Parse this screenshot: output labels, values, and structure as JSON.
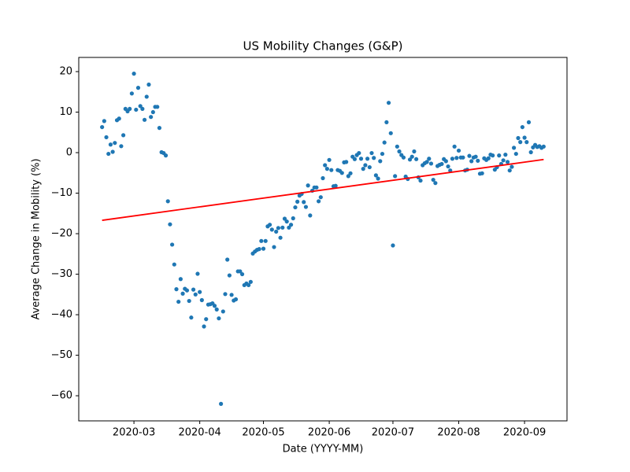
{
  "chart_data": {
    "type": "scatter",
    "title": "US Mobility Changes (G&P)",
    "x_label": "Date (YYYY-MM)",
    "y_label": "Average Change in Mobility (%)",
    "color": "#1f77b4",
    "x": [
      "2020-02-15",
      "2020-02-16",
      "2020-02-17",
      "2020-02-18",
      "2020-02-19",
      "2020-02-20",
      "2020-02-21",
      "2020-02-22",
      "2020-02-23",
      "2020-02-24",
      "2020-02-25",
      "2020-02-26",
      "2020-02-27",
      "2020-02-28",
      "2020-02-29",
      "2020-03-01",
      "2020-03-02",
      "2020-03-03",
      "2020-03-04",
      "2020-03-05",
      "2020-03-06",
      "2020-03-07",
      "2020-03-08",
      "2020-03-09",
      "2020-03-10",
      "2020-03-11",
      "2020-03-12",
      "2020-03-13",
      "2020-03-14",
      "2020-03-15",
      "2020-03-16",
      "2020-03-17",
      "2020-03-18",
      "2020-03-19",
      "2020-03-20",
      "2020-03-21",
      "2020-03-22",
      "2020-03-23",
      "2020-03-24",
      "2020-03-25",
      "2020-03-26",
      "2020-03-27",
      "2020-03-28",
      "2020-03-29",
      "2020-03-30",
      "2020-03-31",
      "2020-04-01",
      "2020-04-02",
      "2020-04-03",
      "2020-04-04",
      "2020-04-05",
      "2020-04-06",
      "2020-04-07",
      "2020-04-08",
      "2020-04-09",
      "2020-04-10",
      "2020-04-11",
      "2020-04-12",
      "2020-04-13",
      "2020-04-14",
      "2020-04-15",
      "2020-04-16",
      "2020-04-17",
      "2020-04-18",
      "2020-04-19",
      "2020-04-20",
      "2020-04-21",
      "2020-04-22",
      "2020-04-23",
      "2020-04-24",
      "2020-04-25",
      "2020-04-26",
      "2020-04-27",
      "2020-04-28",
      "2020-04-29",
      "2020-04-30",
      "2020-05-01",
      "2020-05-02",
      "2020-05-03",
      "2020-05-04",
      "2020-05-05",
      "2020-05-06",
      "2020-05-07",
      "2020-05-08",
      "2020-05-09",
      "2020-05-10",
      "2020-05-11",
      "2020-05-12",
      "2020-05-13",
      "2020-05-14",
      "2020-05-15",
      "2020-05-16",
      "2020-05-17",
      "2020-05-18",
      "2020-05-19",
      "2020-05-20",
      "2020-05-21",
      "2020-05-22",
      "2020-05-23",
      "2020-05-24",
      "2020-05-25",
      "2020-05-26",
      "2020-05-27",
      "2020-05-28",
      "2020-05-29",
      "2020-05-30",
      "2020-05-31",
      "2020-06-01",
      "2020-06-02",
      "2020-06-03",
      "2020-06-04",
      "2020-06-05",
      "2020-06-06",
      "2020-06-07",
      "2020-06-08",
      "2020-06-09",
      "2020-06-10",
      "2020-06-11",
      "2020-06-12",
      "2020-06-13",
      "2020-06-14",
      "2020-06-15",
      "2020-06-16",
      "2020-06-17",
      "2020-06-18",
      "2020-06-19",
      "2020-06-20",
      "2020-06-21",
      "2020-06-22",
      "2020-06-23",
      "2020-06-24",
      "2020-06-25",
      "2020-06-26",
      "2020-06-27",
      "2020-06-28",
      "2020-06-29",
      "2020-06-30",
      "2020-07-01",
      "2020-07-02",
      "2020-07-03",
      "2020-07-04",
      "2020-07-05",
      "2020-07-06",
      "2020-07-07",
      "2020-07-08",
      "2020-07-09",
      "2020-07-10",
      "2020-07-11",
      "2020-07-12",
      "2020-07-13",
      "2020-07-14",
      "2020-07-15",
      "2020-07-16",
      "2020-07-17",
      "2020-07-18",
      "2020-07-19",
      "2020-07-20",
      "2020-07-21",
      "2020-07-22",
      "2020-07-23",
      "2020-07-24",
      "2020-07-25",
      "2020-07-26",
      "2020-07-27",
      "2020-07-28",
      "2020-07-29",
      "2020-07-30",
      "2020-07-31",
      "2020-08-01",
      "2020-08-02",
      "2020-08-03",
      "2020-08-04",
      "2020-08-05",
      "2020-08-06",
      "2020-08-07",
      "2020-08-08",
      "2020-08-09",
      "2020-08-10",
      "2020-08-11",
      "2020-08-12",
      "2020-08-13",
      "2020-08-14",
      "2020-08-15",
      "2020-08-16",
      "2020-08-17",
      "2020-08-18",
      "2020-08-19",
      "2020-08-20",
      "2020-08-21",
      "2020-08-22",
      "2020-08-23",
      "2020-08-24",
      "2020-08-25",
      "2020-08-26",
      "2020-08-27",
      "2020-08-28",
      "2020-08-29",
      "2020-08-30",
      "2020-08-31",
      "2020-09-01",
      "2020-09-02",
      "2020-09-03",
      "2020-09-04",
      "2020-09-05",
      "2020-09-06",
      "2020-09-07",
      "2020-09-08",
      "2020-09-09",
      "2020-09-10"
    ],
    "values": [
      6.3,
      7.8,
      3.8,
      -0.3,
      2.0,
      0.2,
      2.4,
      8.0,
      8.4,
      1.6,
      4.3,
      10.8,
      10.2,
      10.8,
      14.6,
      19.5,
      10.6,
      16.0,
      11.5,
      10.8,
      8.1,
      13.8,
      16.8,
      8.8,
      10.0,
      11.3,
      11.3,
      6.1,
      0.1,
      -0.1,
      -0.7,
      -12.0,
      -17.7,
      -22.7,
      -27.6,
      -33.7,
      -36.8,
      -31.2,
      -34.8,
      -33.6,
      -34.0,
      -36.6,
      -40.7,
      -33.8,
      -35.0,
      -29.9,
      -34.4,
      -36.4,
      -42.9,
      -41.1,
      -37.5,
      -37.4,
      -37.2,
      -37.8,
      -38.7,
      -40.9,
      -62.0,
      -39.2,
      -34.9,
      -26.4,
      -30.3,
      -35.1,
      -36.5,
      -36.2,
      -29.3,
      -29.3,
      -30.0,
      -32.7,
      -32.3,
      -32.7,
      -31.9,
      -24.9,
      -24.4,
      -24.0,
      -23.8,
      -21.8,
      -23.7,
      -21.8,
      -18.2,
      -17.8,
      -19.0,
      -23.3,
      -19.5,
      -18.6,
      -21.0,
      -18.5,
      -16.3,
      -17.0,
      -18.5,
      -17.8,
      -16.2,
      -13.5,
      -12.1,
      -10.6,
      -10.2,
      -12.2,
      -13.4,
      -8.1,
      -15.5,
      -9.4,
      -8.6,
      -8.6,
      -12.0,
      -11.0,
      -6.3,
      -3.1,
      -4.0,
      -1.8,
      -4.3,
      -8.3,
      -8.2,
      -4.3,
      -4.5,
      -5.0,
      -2.4,
      -2.3,
      -5.8,
      -5.1,
      -1.0,
      -1.6,
      -0.6,
      -0.1,
      -1.5,
      -4.0,
      -3.1,
      -1.5,
      -3.6,
      -0.1,
      -1.3,
      -5.6,
      -6.4,
      -2.1,
      -0.3,
      2.5,
      7.5,
      12.3,
      4.8,
      -22.9,
      -5.8,
      1.5,
      0.3,
      -0.6,
      -1.2,
      -5.9,
      -6.5,
      -1.7,
      -1.0,
      0.3,
      -1.6,
      -6.1,
      -6.9,
      -3.1,
      -2.6,
      -2.3,
      -1.5,
      -2.7,
      -6.7,
      -7.5,
      -3.3,
      -3.0,
      -2.8,
      -1.6,
      -2.1,
      -3.4,
      -4.4,
      -1.5,
      1.5,
      -1.3,
      0.5,
      -1.2,
      -1.2,
      -4.4,
      -4.2,
      -0.8,
      -2.1,
      -1.2,
      -1.0,
      -2.0,
      -5.2,
      -5.1,
      -1.4,
      -1.8,
      -1.4,
      -0.5,
      -0.7,
      -4.2,
      -3.6,
      -0.7,
      -2.8,
      -1.9,
      -0.5,
      -2.3,
      -4.4,
      -3.5,
      1.2,
      -0.3,
      3.6,
      2.6,
      6.3,
      3.7,
      2.6,
      7.5,
      0.1,
      1.3,
      1.9,
      1.4,
      1.6,
      1.2,
      1.5
    ],
    "trend": {
      "x": [
        "2020-02-15",
        "2020-09-10"
      ],
      "values": [
        -16.7,
        -1.7
      ],
      "color": "#ff0000"
    },
    "xlim": [
      "2020-02-04",
      "2020-09-21"
    ],
    "xticks": [
      {
        "value": "2020-03-01",
        "label": "2020-03"
      },
      {
        "value": "2020-04-01",
        "label": "2020-04"
      },
      {
        "value": "2020-05-01",
        "label": "2020-05"
      },
      {
        "value": "2020-06-01",
        "label": "2020-06"
      },
      {
        "value": "2020-07-01",
        "label": "2020-07"
      },
      {
        "value": "2020-08-01",
        "label": "2020-08"
      },
      {
        "value": "2020-09-01",
        "label": "2020-09"
      }
    ],
    "ylim": [
      -66.2,
      23.5
    ],
    "yticks": [
      {
        "value": -60,
        "label": "−60"
      },
      {
        "value": -50,
        "label": "−50"
      },
      {
        "value": -40,
        "label": "−40"
      },
      {
        "value": -30,
        "label": "−30"
      },
      {
        "value": -20,
        "label": "−20"
      },
      {
        "value": -10,
        "label": "−10"
      },
      0,
      10,
      20
    ]
  }
}
